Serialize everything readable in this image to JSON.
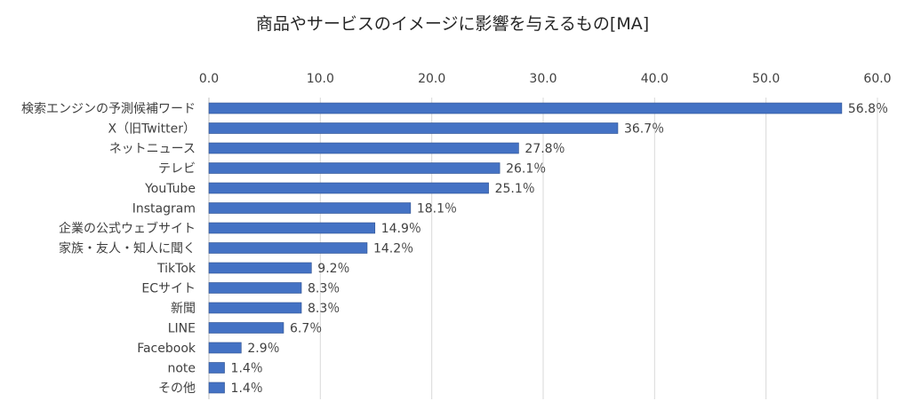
{
  "chart_data": {
    "type": "bar",
    "orientation": "horizontal",
    "title": "商品やサービスのイメージに影響を与えるもの[MA]",
    "categories": [
      "検索エンジンの予測候補ワード",
      "X（旧Twitter）",
      "ネットニュース",
      "テレビ",
      "YouTube",
      "Instagram",
      "企業の公式ウェブサイト",
      "家族・友人・知人に聞く",
      "TikTok",
      "ECサイト",
      "新聞",
      "LINE",
      "Facebook",
      "note",
      "その他"
    ],
    "values": [
      56.8,
      36.7,
      27.8,
      26.1,
      25.1,
      18.1,
      14.9,
      14.2,
      9.2,
      8.3,
      8.3,
      6.7,
      2.9,
      1.4,
      1.4
    ],
    "data_labels": [
      "56.8％",
      "36.7％",
      "27.8％",
      "26.1％",
      "25.1％",
      "18.1％",
      "14.9％",
      "14.2％",
      "9.2％",
      "8.3％",
      "8.3％",
      "6.7％",
      "2.9％",
      "1.4％",
      "1.4％"
    ],
    "x_ticks": [
      "0.0",
      "10.0",
      "20.0",
      "30.0",
      "40.0",
      "50.0",
      "60.0"
    ],
    "xlim": [
      0,
      60
    ],
    "axis_position": "top",
    "grid": true,
    "legend": "none",
    "colors": {
      "bar": "#4472c4",
      "bar_edge": "#2f528f",
      "grid": "#d9d9d9",
      "text": "#404040"
    }
  }
}
